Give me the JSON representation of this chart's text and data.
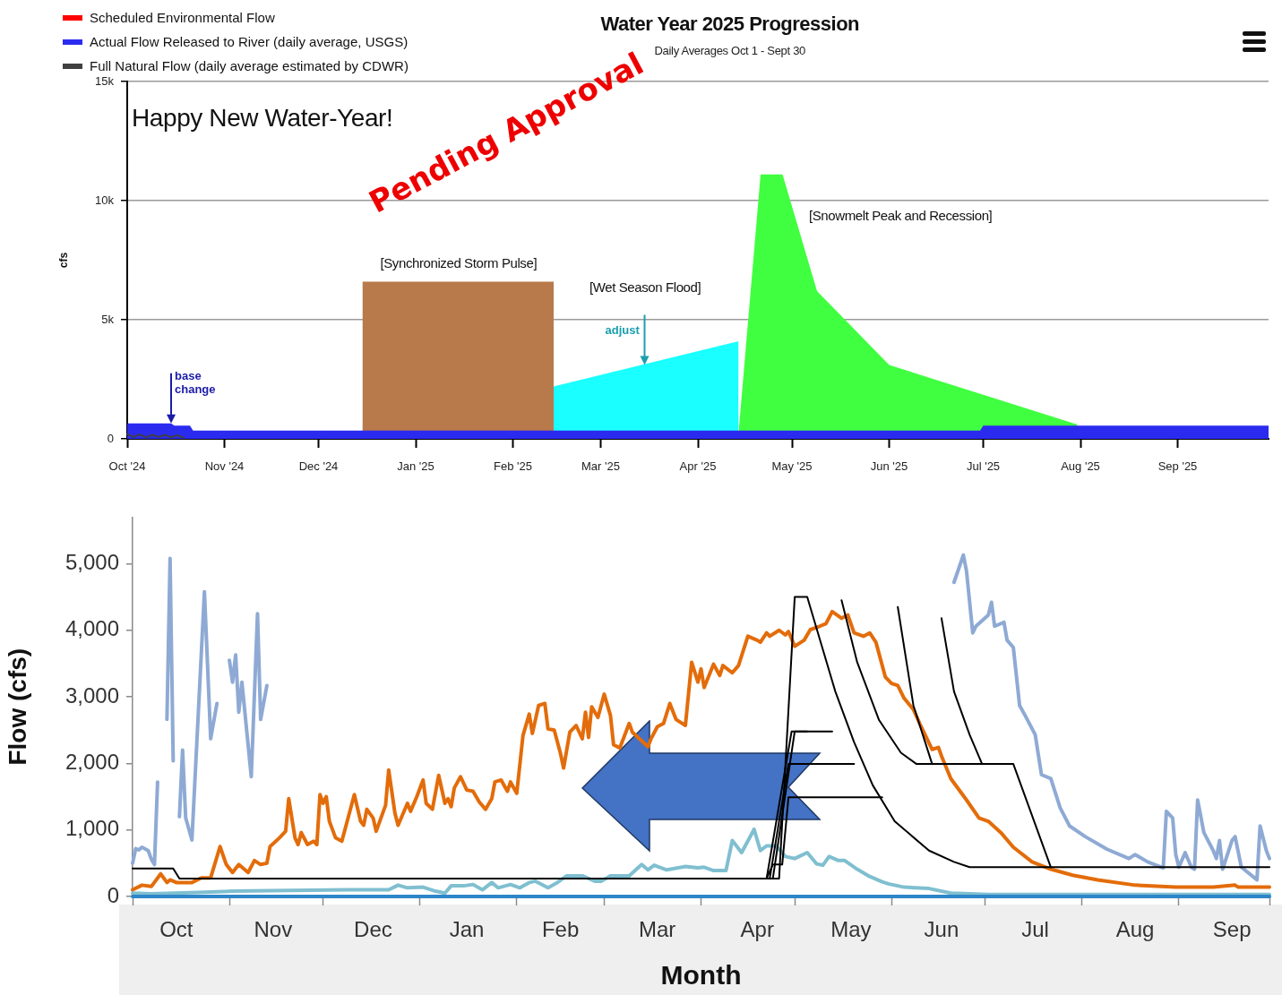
{
  "chart_data": [
    {
      "type": "area",
      "title": "Water Year 2025 Progression",
      "subtitle": "Daily Averages Oct 1 - Sept 30",
      "ylabel": "cfs",
      "legend": "top left",
      "grid": "y",
      "marker": "none",
      "xlim": [
        "2024-10-01",
        "2025-09-30"
      ],
      "xticks": [
        {
          "value": "2024-10-01",
          "label": "Oct '24"
        },
        {
          "value": "2024-11-01",
          "label": "Nov '24"
        },
        {
          "value": "2024-12-01",
          "label": "Dec '24"
        },
        {
          "value": "2025-01-01",
          "label": "Jan '25"
        },
        {
          "value": "2025-02-01",
          "label": "Feb '25"
        },
        {
          "value": "2025-03-01",
          "label": "Mar '25"
        },
        {
          "value": "2025-04-01",
          "label": "Apr '25"
        },
        {
          "value": "2025-05-01",
          "label": "May '25"
        },
        {
          "value": "2025-06-01",
          "label": "Jun '25"
        },
        {
          "value": "2025-07-01",
          "label": "Jul '25"
        },
        {
          "value": "2025-08-01",
          "label": "Aug '25"
        },
        {
          "value": "2025-09-01",
          "label": "Sep '25"
        }
      ],
      "ylim": [
        0,
        15000
      ],
      "yticks": [
        0,
        {
          "value": 5000,
          "label": "5k"
        },
        {
          "value": 10000,
          "label": "10k"
        },
        {
          "value": 15000,
          "label": "15k"
        }
      ],
      "series": [
        {
          "name": "Scheduled Environmental Flow",
          "type": "line",
          "color": "#ff0000"
        },
        {
          "name": "Actual Flow Released to River (daily average, USGS)",
          "color": "#2b2bf0",
          "x": [
            "2024-10-01",
            "2024-10-15",
            "2024-10-16",
            "2024-10-21",
            "2024-10-22",
            "2025-06-30",
            "2025-07-01",
            "2025-09-30"
          ],
          "values": [
            650,
            650,
            550,
            550,
            350,
            350,
            550,
            550
          ]
        },
        {
          "name": "Full Natural Flow (daily average estimated by CDWR)",
          "type": "line",
          "color": "#404040",
          "x": [
            "2024-10-01",
            "2024-10-03",
            "2024-10-05",
            "2024-10-07",
            "2024-10-09",
            "2024-10-11",
            "2024-10-13",
            "2024-10-15",
            "2024-10-17",
            "2024-10-19"
          ],
          "values": [
            200,
            80,
            180,
            60,
            170,
            80,
            160,
            70,
            150,
            50
          ]
        },
        {
          "color": "#b87a4b",
          "x": [
            "2024-12-15",
            "2025-02-14"
          ],
          "values": [
            6600,
            6600
          ]
        },
        {
          "color": "#1affff",
          "x": [
            "2025-02-14",
            "2025-04-14"
          ],
          "values": [
            2200,
            4100
          ]
        },
        {
          "color": "#40ff40",
          "x": [
            "2025-04-14",
            "2025-04-21",
            "2025-04-28",
            "2025-05-09",
            "2025-06-01",
            "2025-07-31"
          ],
          "values": [
            300,
            11100,
            11100,
            6200,
            3100,
            600
          ]
        }
      ],
      "annotations": [
        "Happy New Water-Year!",
        "Pending Approval",
        "[Synchronized Storm Pulse]",
        "[Wet Season Flood]",
        "[Snowmelt Peak and Recession]",
        {
          "text": "base change",
          "x": "2024-10-15",
          "y": 650
        },
        {
          "text": "adjust",
          "x": "2025-03-15",
          "y": 3100
        }
      ]
    },
    {
      "type": "line",
      "xlabel": "Month",
      "ylabel": "Flow (cfs)",
      "marker": "none",
      "xlim": [
        "2024-10-01",
        "2025-09-30"
      ],
      "xticks": [
        {
          "value": "2024-10-01",
          "label": null
        },
        {
          "value": "2024-10-15",
          "label": "Oct"
        },
        {
          "value": "2024-11-01",
          "label": null
        },
        {
          "value": "2024-11-15",
          "label": "Nov"
        },
        {
          "value": "2024-12-01",
          "label": null
        },
        {
          "value": "2024-12-17",
          "label": "Dec"
        },
        {
          "value": "2025-01-01",
          "label": null
        },
        {
          "value": "2025-01-16",
          "label": "Jan"
        },
        {
          "value": "2025-02-01",
          "label": null
        },
        {
          "value": "2025-02-15",
          "label": "Feb"
        },
        {
          "value": "2025-03-01",
          "label": null
        },
        {
          "value": "2025-03-18",
          "label": "Mar"
        },
        {
          "value": "2025-04-01",
          "label": null
        },
        {
          "value": "2025-04-19",
          "label": "Apr"
        },
        {
          "value": "2025-05-01",
          "label": null
        },
        {
          "value": "2025-05-19",
          "label": "May"
        },
        {
          "value": "2025-06-01",
          "label": null
        },
        {
          "value": "2025-06-17",
          "label": "Jun"
        },
        {
          "value": "2025-07-01",
          "label": null
        },
        {
          "value": "2025-07-17",
          "label": "Jul"
        },
        {
          "value": "2025-08-01",
          "label": null
        },
        {
          "value": "2025-08-18",
          "label": "Aug"
        },
        {
          "value": "2025-09-01",
          "label": null
        },
        {
          "value": "2025-09-18",
          "label": "Sep"
        },
        {
          "value": "2025-09-30",
          "label": null
        }
      ],
      "ylim": [
        0,
        5700
      ],
      "yticks": [
        0,
        {
          "value": 1000,
          "label": "1,000"
        },
        {
          "value": 2000,
          "label": "2,000"
        },
        {
          "value": 3000,
          "label": "3,000"
        },
        {
          "value": 4000,
          "label": "4,000"
        },
        {
          "value": 5000,
          "label": "5,000"
        }
      ],
      "series": [
        {
          "color": "#8eaad4",
          "x": [
            "2024-10-01",
            "2024-10-02",
            "2024-10-03",
            "2024-10-04",
            "2024-10-06",
            "2024-10-07",
            "2024-10-08",
            "2024-10-09",
            "2024-10-10",
            "2024-10-11",
            "2024-10-12",
            "2024-10-13",
            "2024-10-14",
            "2024-10-15",
            "2024-10-16",
            "2024-10-17",
            "2024-10-18",
            "2024-10-20",
            "2024-10-24",
            "2024-10-26",
            "2024-10-28",
            "2024-10-29",
            "2024-10-31",
            "2024-11-01",
            "2024-11-02",
            "2024-11-03",
            "2024-11-04",
            "2024-11-05",
            "2024-11-08",
            "2024-11-10",
            "2024-11-11",
            "2024-11-13",
            "2024-11-14",
            "2024-11-15",
            "2024-11-16",
            "2024-11-17",
            "2024-11-21",
            "2024-11-22",
            "2024-11-23",
            "2024-11-28",
            "2024-11-29",
            "2024-11-30",
            "2024-12-06",
            "2024-12-07",
            "2024-12-08",
            "2025-06-20",
            "2025-06-21",
            "2025-06-24",
            "2025-06-25",
            "2025-06-27",
            "2025-06-28",
            "2025-07-02",
            "2025-07-03",
            "2025-07-04",
            "2025-07-07",
            "2025-07-08",
            "2025-07-10",
            "2025-07-12",
            "2025-07-14",
            "2025-07-17",
            "2025-07-19",
            "2025-07-22",
            "2025-07-25",
            "2025-07-28",
            "2025-08-02",
            "2025-08-09",
            "2025-08-16",
            "2025-08-18",
            "2025-08-22",
            "2025-08-27",
            "2025-08-28",
            "2025-08-30",
            "2025-08-31",
            "2025-09-01",
            "2025-09-03",
            "2025-09-05",
            "2025-09-06",
            "2025-09-07",
            "2025-09-09",
            "2025-09-12",
            "2025-09-13",
            "2025-09-14",
            "2025-09-15",
            "2025-09-18",
            "2025-09-19",
            "2025-09-21",
            "2025-09-26",
            "2025-09-27",
            "2025-09-29",
            "2025-09-30"
          ],
          "values": [
            500,
            720,
            700,
            740,
            690,
            560,
            480,
            1720,
            null,
            null,
            2660,
            5080,
            2040,
            null,
            1200,
            2200,
            1180,
            850,
            4580,
            2370,
            2900,
            null,
            null,
            3550,
            3220,
            3630,
            2770,
            3220,
            1800,
            4250,
            2660,
            3170,
            null,
            null,
            null,
            null,
            null,
            null,
            null,
            null,
            null,
            null,
            null,
            null,
            null,
            null,
            4720,
            5130,
            4890,
            3960,
            4060,
            4230,
            4420,
            4060,
            4120,
            3850,
            3740,
            2870,
            2700,
            2430,
            1830,
            1770,
            1330,
            1060,
            900,
            710,
            570,
            630,
            520,
            430,
            1280,
            1180,
            630,
            440,
            660,
            440,
            410,
            1450,
            960,
            690,
            570,
            840,
            410,
            840,
            900,
            440,
            250,
            1060,
            690,
            570
          ]
        },
        {
          "color": "#e36c0a",
          "x": [
            "2024-10-01",
            "2024-10-04",
            "2024-10-07",
            "2024-10-10",
            "2024-10-12",
            "2024-10-13",
            "2024-10-15",
            "2024-10-17",
            "2024-10-20",
            "2024-10-23",
            "2024-10-26",
            "2024-10-29",
            "2024-10-31",
            "2024-11-02",
            "2024-11-04",
            "2024-11-07",
            "2024-11-09",
            "2024-11-11",
            "2024-11-13",
            "2024-11-14",
            "2024-11-17",
            "2024-11-19",
            "2024-11-20",
            "2024-11-22",
            "2024-11-23",
            "2024-11-24",
            "2024-11-26",
            "2024-11-28",
            "2024-11-29",
            "2024-11-30",
            "2024-12-01",
            "2024-12-02",
            "2024-12-03",
            "2024-12-05",
            "2024-12-07",
            "2024-12-09",
            "2024-12-11",
            "2024-12-13",
            "2024-12-14",
            "2024-12-15",
            "2024-12-17",
            "2024-12-18",
            "2024-12-21",
            "2024-12-22",
            "2024-12-24",
            "2024-12-25",
            "2024-12-28",
            "2024-12-29",
            "2024-12-31",
            "2025-01-02",
            "2025-01-03",
            "2025-01-05",
            "2025-01-07",
            "2025-01-09",
            "2025-01-10",
            "2025-01-11",
            "2025-01-12",
            "2025-01-14",
            "2025-01-16",
            "2025-01-18",
            "2025-01-20",
            "2025-01-22",
            "2025-01-24",
            "2025-01-25",
            "2025-01-27",
            "2025-01-29",
            "2025-01-30",
            "2025-02-01",
            "2025-02-03",
            "2025-02-05",
            "2025-02-06",
            "2025-02-08",
            "2025-02-10",
            "2025-02-11",
            "2025-02-13",
            "2025-02-15",
            "2025-02-16",
            "2025-02-17",
            "2025-02-18",
            "2025-02-20",
            "2025-02-22",
            "2025-02-23",
            "2025-02-24",
            "2025-02-25",
            "2025-02-27",
            "2025-03-01",
            "2025-03-03",
            "2025-03-04",
            "2025-03-06",
            "2025-03-09",
            "2025-03-10",
            "2025-03-15",
            "2025-03-16",
            "2025-03-18",
            "2025-03-20",
            "2025-03-22",
            "2025-03-24",
            "2025-03-27",
            "2025-03-29",
            "2025-03-31",
            "2025-04-01",
            "2025-04-02",
            "2025-04-05",
            "2025-04-07",
            "2025-04-08",
            "2025-04-11",
            "2025-04-13",
            "2025-04-16",
            "2025-04-19",
            "2025-04-20",
            "2025-04-22",
            "2025-04-23",
            "2025-04-26",
            "2025-04-28",
            "2025-04-29",
            "2025-05-01",
            "2025-05-04",
            "2025-05-06",
            "2025-05-09",
            "2025-05-11",
            "2025-05-13",
            "2025-05-16",
            "2025-05-18",
            "2025-05-20",
            "2025-05-23",
            "2025-05-25",
            "2025-05-27",
            "2025-05-30",
            "2025-06-01",
            "2025-06-03",
            "2025-06-05",
            "2025-06-08",
            "2025-06-10",
            "2025-06-14",
            "2025-06-16",
            "2025-06-17",
            "2025-06-20",
            "2025-06-25",
            "2025-06-29",
            "2025-07-02",
            "2025-07-06",
            "2025-07-10",
            "2025-07-16",
            "2025-07-22",
            "2025-07-29",
            "2025-08-06",
            "2025-08-18",
            "2025-08-31",
            "2025-09-12",
            "2025-09-19",
            "2025-09-20",
            "2025-09-30"
          ],
          "values": [
            100,
            170,
            150,
            340,
            210,
            250,
            210,
            210,
            210,
            280,
            280,
            750,
            480,
            360,
            480,
            360,
            540,
            480,
            500,
            750,
            880,
            980,
            1470,
            880,
            780,
            960,
            780,
            830,
            780,
            1530,
            1400,
            1500,
            1130,
            880,
            830,
            1180,
            1530,
            1130,
            1070,
            1310,
            1180,
            980,
            1370,
            1900,
            1250,
            1070,
            1400,
            1280,
            1500,
            1750,
            1400,
            1310,
            1820,
            1400,
            1470,
            1350,
            1630,
            1800,
            1600,
            1580,
            1420,
            1310,
            1470,
            1720,
            1750,
            1580,
            1720,
            1550,
            2420,
            2740,
            2450,
            2870,
            2900,
            2520,
            2500,
            2150,
            1930,
            2200,
            2470,
            2570,
            2370,
            2770,
            2390,
            2850,
            2690,
            3040,
            2720,
            2280,
            2230,
            2600,
            2470,
            2250,
            2370,
            2550,
            2600,
            2900,
            2660,
            2570,
            3520,
            3220,
            3420,
            3140,
            3490,
            3320,
            3470,
            3360,
            3470,
            3910,
            3850,
            3820,
            3960,
            3910,
            4000,
            3930,
            3980,
            3760,
            3850,
            4010,
            4060,
            4100,
            4280,
            4180,
            4230,
            3960,
            3910,
            3960,
            3820,
            3300,
            3200,
            3170,
            2980,
            2810,
            2600,
            2210,
            2240,
            2110,
            1770,
            1450,
            1180,
            1130,
            960,
            740,
            520,
            410,
            320,
            250,
            170,
            140,
            140,
            170,
            140,
            140
          ]
        },
        {
          "color": "#7fbfd0",
          "x": [
            "2024-10-01",
            "2024-10-07",
            "2024-10-22",
            "2024-11-02",
            "2024-12-09",
            "2024-12-22",
            "2024-12-25",
            "2024-12-28",
            "2025-01-02",
            "2025-01-06",
            "2025-01-09",
            "2025-01-11",
            "2025-01-15",
            "2025-01-18",
            "2025-01-21",
            "2025-01-24",
            "2025-01-26",
            "2025-01-30",
            "2025-02-02",
            "2025-02-05",
            "2025-02-07",
            "2025-02-11",
            "2025-02-14",
            "2025-02-17",
            "2025-02-22",
            "2025-02-26",
            "2025-02-28",
            "2025-03-03",
            "2025-03-09",
            "2025-03-13",
            "2025-03-15",
            "2025-03-17",
            "2025-03-21",
            "2025-03-27",
            "2025-03-31",
            "2025-04-02",
            "2025-04-05",
            "2025-04-09",
            "2025-04-11",
            "2025-04-14",
            "2025-04-18",
            "2025-04-20",
            "2025-04-22",
            "2025-04-25",
            "2025-04-28",
            "2025-05-01",
            "2025-05-05",
            "2025-05-08",
            "2025-05-10",
            "2025-05-12",
            "2025-05-15",
            "2025-05-17",
            "2025-05-21",
            "2025-05-25",
            "2025-05-29",
            "2025-05-31",
            "2025-06-05",
            "2025-06-13",
            "2025-06-20",
            "2025-07-02",
            "2025-07-21",
            "2025-08-18",
            "2025-09-30"
          ],
          "values": [
            50,
            40,
            60,
            80,
            100,
            100,
            170,
            130,
            140,
            80,
            50,
            160,
            160,
            180,
            100,
            210,
            130,
            180,
            130,
            210,
            230,
            130,
            210,
            310,
            310,
            230,
            230,
            310,
            310,
            480,
            400,
            470,
            400,
            450,
            430,
            440,
            390,
            390,
            840,
            660,
            1010,
            690,
            760,
            760,
            600,
            570,
            660,
            490,
            470,
            600,
            540,
            540,
            410,
            300,
            220,
            190,
            140,
            120,
            50,
            30,
            30,
            30,
            30
          ]
        },
        {
          "color": "#2e86c8",
          "x": [
            "2024-10-01",
            "2025-09-30"
          ],
          "values": [
            0,
            0
          ]
        },
        {
          "color": "#000000",
          "x": [
            "2024-10-01",
            "2024-10-14",
            "2024-10-16",
            "2025-04-26",
            "2025-05-01",
            "2025-05-05",
            "2025-05-14",
            "2025-05-20",
            "2025-05-26",
            "2025-06-02",
            "2025-06-13",
            "2025-06-21",
            "2025-06-26",
            "2025-09-30"
          ],
          "values": [
            420,
            420,
            270,
            270,
            4500,
            4500,
            3080,
            2320,
            1670,
            1130,
            690,
            520,
            440,
            440
          ]
        },
        {
          "color": "#000000",
          "x": [
            "2025-04-22",
            "2025-04-30",
            "2025-05-13"
          ],
          "values": [
            270,
            2480,
            2480
          ]
        },
        {
          "color": "#000000",
          "x": [
            "2025-04-22",
            "2025-04-24",
            "2025-04-27",
            "2025-04-29",
            "2025-05-29"
          ],
          "values": [
            270,
            480,
            480,
            1490,
            1490
          ]
        },
        {
          "color": "#000000",
          "x": [
            "2025-04-23",
            "2025-04-29",
            "2025-05-20"
          ],
          "values": [
            270,
            1990,
            1990
          ]
        },
        {
          "color": "#000000",
          "x": [
            "2025-04-24",
            "2025-05-01",
            "2025-05-05"
          ],
          "values": [
            270,
            2480,
            2480
          ]
        },
        {
          "color": "#000000",
          "x": [
            "2025-05-16",
            "2025-05-21",
            "2025-05-28",
            "2025-06-04",
            "2025-06-09",
            "2025-07-10",
            "2025-07-22"
          ],
          "values": [
            4450,
            3520,
            2650,
            2160,
            1990,
            1990,
            440
          ]
        },
        {
          "color": "#000000",
          "x": [
            "2025-06-03",
            "2025-06-08",
            "2025-06-14"
          ],
          "values": [
            4350,
            2870,
            1990
          ]
        },
        {
          "color": "#000000",
          "x": [
            "2025-06-17",
            "2025-06-21",
            "2025-06-26",
            "2025-06-30"
          ],
          "values": [
            4180,
            3080,
            2430,
            1990
          ]
        }
      ]
    }
  ]
}
